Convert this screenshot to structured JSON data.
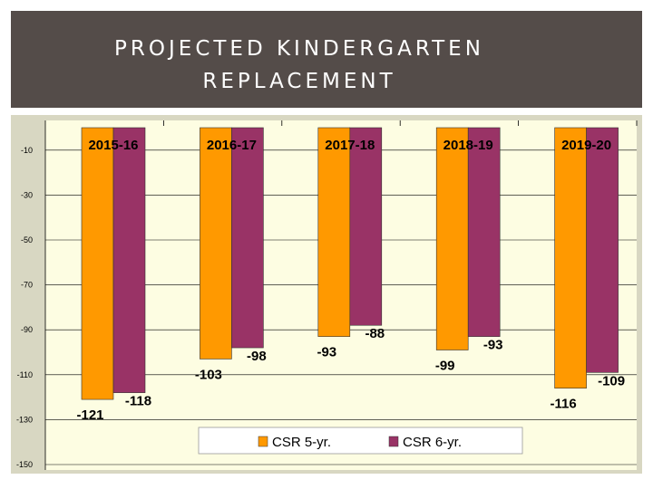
{
  "slide": {
    "title": "PROJECTED KINDERGARTEN REPLACEMENT"
  },
  "colors": {
    "header_bg": "#544c49",
    "plot_bg": "#fdfde2",
    "series_1": "#ff9900",
    "series_2": "#993366"
  },
  "chart_data": {
    "type": "bar",
    "title": "",
    "xlabel": "",
    "ylabel": "",
    "categories": [
      "2015-16",
      "2016-17",
      "2017-18",
      "2018-19",
      "2019-20"
    ],
    "series": [
      {
        "name": "CSR 5-yr.",
        "values": [
          -121,
          -103,
          -93,
          -99,
          -116
        ]
      },
      {
        "name": "CSR 6-yr.",
        "values": [
          -118,
          -98,
          -88,
          -93,
          -109
        ]
      }
    ],
    "y_ticks": [
      "-10",
      "-30",
      "-50",
      "-70",
      "-90",
      "-110",
      "-130",
      "-150"
    ],
    "ylim": [
      -150,
      0
    ],
    "grid": true,
    "legend_position": "bottom-center",
    "category_labels_position": "top-inside-plot"
  }
}
